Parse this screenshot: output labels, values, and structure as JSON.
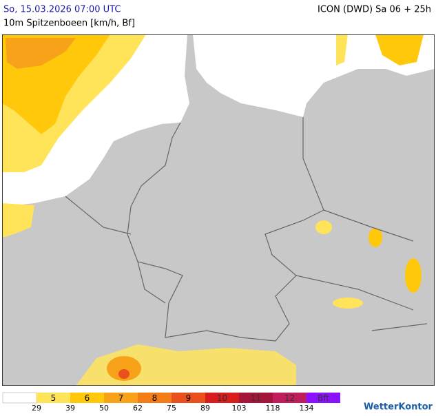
{
  "header": {
    "valid_time": "So, 15.03.2026 07:00 UTC",
    "parameter": "10m Spitzenboeen [km/h, Bf]",
    "model_run": "ICON (DWD) Sa 06 + 25h"
  },
  "legend": {
    "below_color": "#ffffff",
    "classes": [
      {
        "label": "5",
        "color": "#ffe45a"
      },
      {
        "label": "6",
        "color": "#ffc80a"
      },
      {
        "label": "7",
        "color": "#f8a21a"
      },
      {
        "label": "8",
        "color": "#f27c16"
      },
      {
        "label": "9",
        "color": "#e9501e"
      },
      {
        "label": "10",
        "color": "#d81d1d"
      },
      {
        "label": "11",
        "color": "#a3163a"
      },
      {
        "label": "12",
        "color": "#c01d5c"
      },
      {
        "label": "Bft",
        "color": "#8a12ff"
      }
    ],
    "thresholds": [
      29,
      39,
      50,
      62,
      75,
      89,
      103,
      118,
      134
    ]
  },
  "logo": "WetterKontor"
}
